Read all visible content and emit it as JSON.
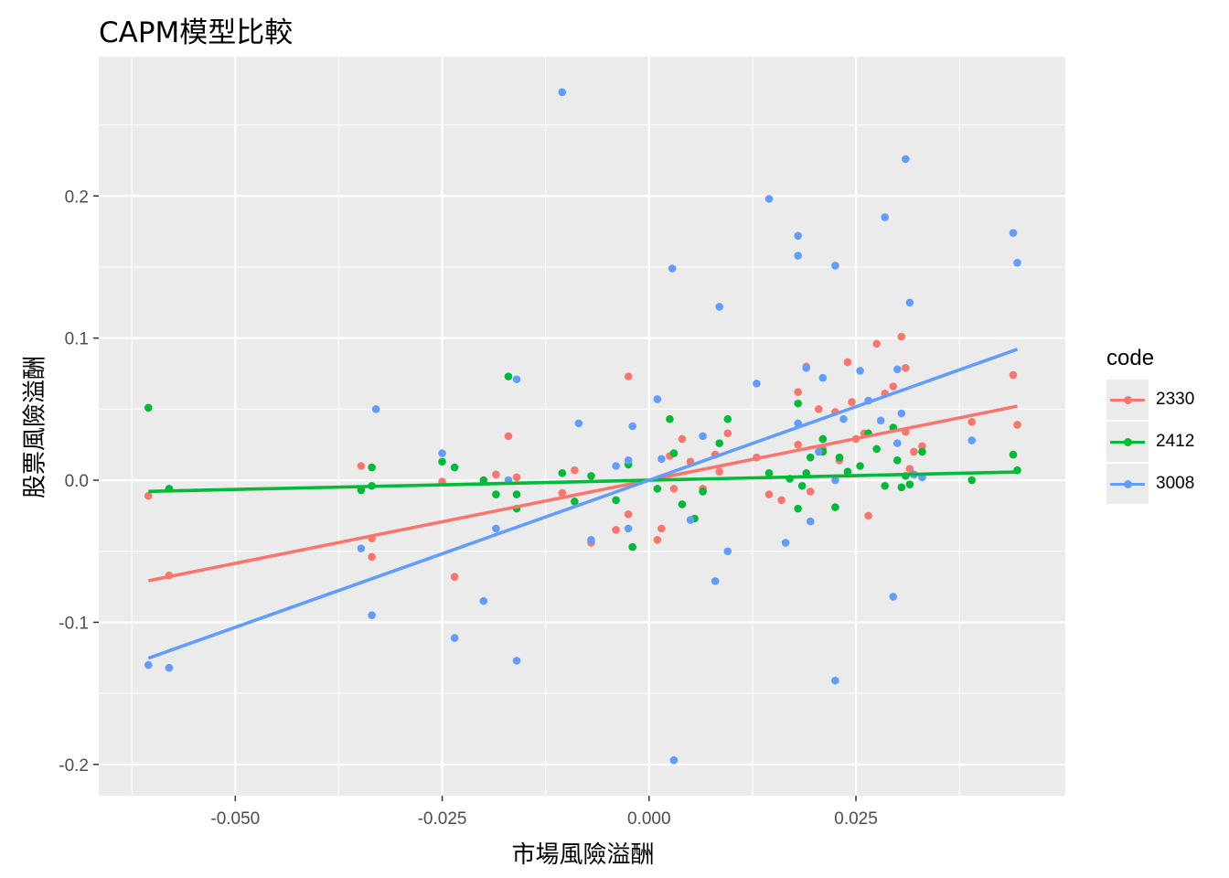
{
  "chart_data": {
    "type": "scatter",
    "title": "CAPM模型比較",
    "xlabel": "市場風險溢酬",
    "ylabel": "股票風險溢酬",
    "xlim": [
      -0.0665,
      0.0503
    ],
    "ylim": [
      -0.222,
      0.298
    ],
    "x_ticks": [
      -0.05,
      -0.025,
      0.0,
      0.025
    ],
    "x_tick_labels": [
      "-0.050",
      "-0.025",
      "0.000",
      "0.025"
    ],
    "y_ticks": [
      -0.2,
      -0.1,
      0.0,
      0.1,
      0.2
    ],
    "y_tick_labels": [
      "-0.2",
      "-0.1",
      "0.0",
      "0.1",
      "0.2"
    ],
    "grid": true,
    "legend": {
      "title": "code",
      "placement": "right"
    },
    "series": [
      {
        "name": "2330",
        "color": "#F8766D",
        "fit": {
          "slope": 1.17,
          "intercept": 0.0,
          "x_range": [
            -0.0605,
            0.0445
          ]
        },
        "points": [
          [
            -0.0605,
            -0.011
          ],
          [
            -0.058,
            -0.067
          ],
          [
            -0.0348,
            0.01
          ],
          [
            -0.0335,
            -0.041
          ],
          [
            -0.0335,
            -0.054
          ],
          [
            -0.025,
            -0.001
          ],
          [
            -0.0235,
            -0.068
          ],
          [
            -0.0185,
            0.004
          ],
          [
            -0.017,
            0.031
          ],
          [
            -0.016,
            0.002
          ],
          [
            -0.0105,
            -0.009
          ],
          [
            -0.009,
            0.007
          ],
          [
            -0.007,
            -0.044
          ],
          [
            -0.004,
            -0.035
          ],
          [
            -0.0025,
            0.073
          ],
          [
            -0.0025,
            -0.024
          ],
          [
            0.001,
            -0.042
          ],
          [
            0.0015,
            -0.034
          ],
          [
            0.0025,
            0.017
          ],
          [
            0.003,
            -0.006
          ],
          [
            0.004,
            0.029
          ],
          [
            0.005,
            0.013
          ],
          [
            0.0065,
            -0.006
          ],
          [
            0.008,
            0.018
          ],
          [
            0.0085,
            0.006
          ],
          [
            0.0095,
            0.033
          ],
          [
            0.013,
            0.016
          ],
          [
            0.0145,
            -0.01
          ],
          [
            0.016,
            -0.014
          ],
          [
            0.018,
            0.062
          ],
          [
            0.018,
            0.025
          ],
          [
            0.019,
            0.08
          ],
          [
            0.0195,
            -0.008
          ],
          [
            0.0205,
            0.05
          ],
          [
            0.021,
            0.022
          ],
          [
            0.0225,
            0.048
          ],
          [
            0.023,
            0.014
          ],
          [
            0.024,
            0.083
          ],
          [
            0.0245,
            0.055
          ],
          [
            0.025,
            0.029
          ],
          [
            0.026,
            0.033
          ],
          [
            0.0265,
            -0.025
          ],
          [
            0.0275,
            0.096
          ],
          [
            0.0285,
            0.061
          ],
          [
            0.0295,
            0.066
          ],
          [
            0.0305,
            0.101
          ],
          [
            0.031,
            0.079
          ],
          [
            0.031,
            0.034
          ],
          [
            0.0315,
            0.008
          ],
          [
            0.032,
            0.02
          ],
          [
            0.033,
            0.024
          ],
          [
            0.039,
            0.041
          ],
          [
            0.044,
            0.074
          ],
          [
            0.0445,
            0.039
          ]
        ]
      },
      {
        "name": "2412",
        "color": "#00BA38",
        "fit": {
          "slope": 0.13,
          "intercept": 0.0,
          "x_range": [
            -0.0605,
            0.0445
          ]
        },
        "points": [
          [
            -0.0605,
            0.051
          ],
          [
            -0.058,
            -0.006
          ],
          [
            -0.0348,
            -0.007
          ],
          [
            -0.0335,
            -0.004
          ],
          [
            -0.0335,
            0.009
          ],
          [
            -0.025,
            0.013
          ],
          [
            -0.0235,
            0.009
          ],
          [
            -0.02,
            0.0
          ],
          [
            -0.0185,
            -0.01
          ],
          [
            -0.017,
            0.073
          ],
          [
            -0.016,
            -0.01
          ],
          [
            -0.016,
            -0.02
          ],
          [
            -0.0105,
            0.005
          ],
          [
            -0.009,
            -0.015
          ],
          [
            -0.007,
            0.003
          ],
          [
            -0.004,
            -0.014
          ],
          [
            -0.0025,
            0.011
          ],
          [
            -0.002,
            -0.047
          ],
          [
            0.001,
            -0.006
          ],
          [
            0.0025,
            0.043
          ],
          [
            0.003,
            0.019
          ],
          [
            0.004,
            -0.017
          ],
          [
            0.0055,
            -0.027
          ],
          [
            0.0065,
            -0.008
          ],
          [
            0.0085,
            0.026
          ],
          [
            0.0095,
            0.043
          ],
          [
            0.0145,
            0.005
          ],
          [
            0.017,
            0.001
          ],
          [
            0.018,
            0.054
          ],
          [
            0.018,
            -0.02
          ],
          [
            0.0185,
            -0.004
          ],
          [
            0.019,
            0.005
          ],
          [
            0.0195,
            0.016
          ],
          [
            0.021,
            0.029
          ],
          [
            0.021,
            0.02
          ],
          [
            0.0225,
            -0.019
          ],
          [
            0.023,
            0.016
          ],
          [
            0.024,
            0.006
          ],
          [
            0.0255,
            0.01
          ],
          [
            0.0265,
            0.033
          ],
          [
            0.0275,
            0.022
          ],
          [
            0.0285,
            -0.004
          ],
          [
            0.0295,
            0.037
          ],
          [
            0.03,
            0.014
          ],
          [
            0.0305,
            -0.005
          ],
          [
            0.031,
            0.003
          ],
          [
            0.0315,
            -0.003
          ],
          [
            0.032,
            0.004
          ],
          [
            0.033,
            0.02
          ],
          [
            0.039,
            0.0
          ],
          [
            0.044,
            0.018
          ],
          [
            0.0445,
            0.007
          ]
        ]
      },
      {
        "name": "3008",
        "color": "#619CFF",
        "fit": {
          "slope": 2.07,
          "intercept": 0.0,
          "x_range": [
            -0.0605,
            0.0445
          ]
        },
        "points": [
          [
            -0.0605,
            -0.13
          ],
          [
            -0.058,
            -0.132
          ],
          [
            -0.0348,
            -0.048
          ],
          [
            -0.033,
            0.05
          ],
          [
            -0.0335,
            -0.095
          ],
          [
            -0.025,
            0.019
          ],
          [
            -0.0235,
            -0.111
          ],
          [
            -0.02,
            -0.085
          ],
          [
            -0.0185,
            -0.034
          ],
          [
            -0.017,
            0.0
          ],
          [
            -0.016,
            0.071
          ],
          [
            -0.016,
            -0.127
          ],
          [
            -0.0105,
            0.273
          ],
          [
            -0.0085,
            0.04
          ],
          [
            -0.007,
            -0.042
          ],
          [
            -0.004,
            0.01
          ],
          [
            -0.0025,
            0.014
          ],
          [
            -0.0025,
            -0.034
          ],
          [
            -0.002,
            0.038
          ],
          [
            0.001,
            0.057
          ],
          [
            0.0015,
            0.015
          ],
          [
            0.0028,
            0.149
          ],
          [
            0.003,
            -0.197
          ],
          [
            0.005,
            -0.028
          ],
          [
            0.0065,
            0.031
          ],
          [
            0.008,
            -0.071
          ],
          [
            0.0085,
            0.122
          ],
          [
            0.0095,
            -0.05
          ],
          [
            0.013,
            0.068
          ],
          [
            0.0145,
            0.198
          ],
          [
            0.0165,
            -0.044
          ],
          [
            0.018,
            0.172
          ],
          [
            0.018,
            0.158
          ],
          [
            0.018,
            0.04
          ],
          [
            0.019,
            0.079
          ],
          [
            0.0195,
            -0.029
          ],
          [
            0.0205,
            0.02
          ],
          [
            0.021,
            0.072
          ],
          [
            0.0225,
            0.151
          ],
          [
            0.0225,
            -0.141
          ],
          [
            0.0225,
            0.0
          ],
          [
            0.0235,
            0.043
          ],
          [
            0.0255,
            0.077
          ],
          [
            0.0265,
            0.056
          ],
          [
            0.028,
            0.042
          ],
          [
            0.0285,
            0.185
          ],
          [
            0.0295,
            -0.082
          ],
          [
            0.03,
            0.078
          ],
          [
            0.03,
            0.026
          ],
          [
            0.0305,
            0.047
          ],
          [
            0.031,
            0.226
          ],
          [
            0.0315,
            0.125
          ],
          [
            0.032,
            0.004
          ],
          [
            0.033,
            0.002
          ],
          [
            0.039,
            0.028
          ],
          [
            0.044,
            0.174
          ],
          [
            0.0445,
            0.153
          ]
        ]
      }
    ]
  }
}
